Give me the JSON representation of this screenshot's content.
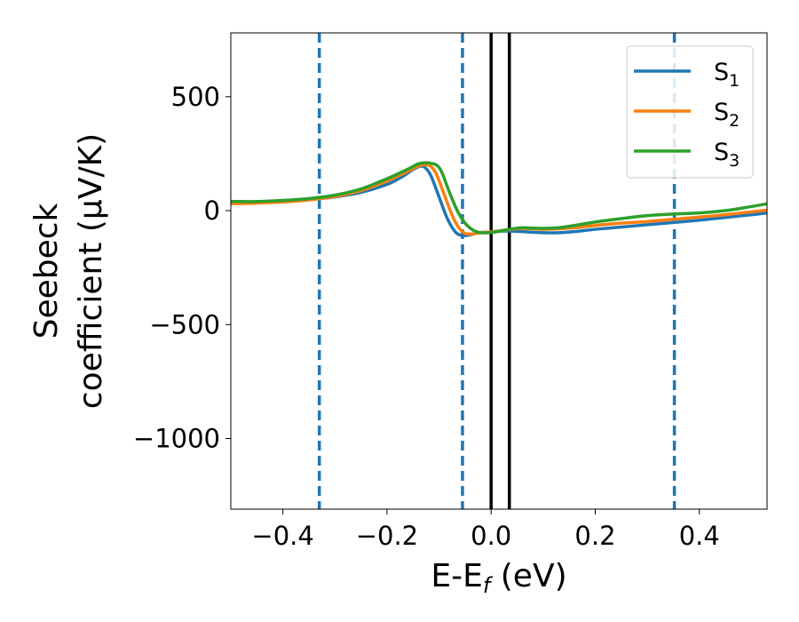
{
  "chart_data": {
    "type": "line",
    "title": "",
    "xlabel": "E-E_f (eV)",
    "ylabel_line1": "Seebeck",
    "ylabel_line2": "coefficient  (μV/K)",
    "xlim": [
      -0.5,
      0.53
    ],
    "ylim": [
      -1310,
      780
    ],
    "xticks": [
      -0.4,
      -0.2,
      0.0,
      0.2,
      0.4
    ],
    "xtick_labels": [
      "−0.4",
      "−0.2",
      "0.0",
      "0.2",
      "0.4"
    ],
    "yticks": [
      -1000,
      -500,
      0,
      500
    ],
    "ytick_labels": [
      "−1000",
      "−500",
      "0",
      "500"
    ],
    "grid": false,
    "legend": {
      "placement": "top-right"
    },
    "dashed_vlines": {
      "color": "#1f77b4",
      "x": [
        -0.33,
        -0.055,
        0.352
      ]
    },
    "solid_vlines": {
      "color": "#000000",
      "x": [
        0.0,
        0.035
      ]
    },
    "series": [
      {
        "name": "S",
        "subscript": "1",
        "color": "#1f77b4",
        "x": [
          -0.5,
          -0.45,
          -0.4,
          -0.35,
          -0.3,
          -0.25,
          -0.2,
          -0.17,
          -0.15,
          -0.135,
          -0.125,
          -0.115,
          -0.1,
          -0.085,
          -0.07,
          -0.058,
          -0.045,
          -0.03,
          -0.015,
          0.0,
          0.02,
          0.04,
          0.06,
          0.08,
          0.1,
          0.13,
          0.16,
          0.2,
          0.25,
          0.3,
          0.35,
          0.4,
          0.45,
          0.5,
          0.53
        ],
        "y": [
          35,
          35,
          40,
          48,
          60,
          80,
          115,
          150,
          180,
          195,
          185,
          150,
          60,
          -30,
          -90,
          -108,
          -108,
          -100,
          -95,
          -95,
          -90,
          -90,
          -92,
          -95,
          -97,
          -97,
          -92,
          -82,
          -72,
          -62,
          -52,
          -42,
          -30,
          -18,
          -10
        ]
      },
      {
        "name": "S",
        "subscript": "2",
        "color": "#ff7f0e",
        "x": [
          -0.5,
          -0.45,
          -0.4,
          -0.35,
          -0.3,
          -0.25,
          -0.2,
          -0.16,
          -0.14,
          -0.125,
          -0.115,
          -0.105,
          -0.09,
          -0.075,
          -0.062,
          -0.05,
          -0.035,
          -0.02,
          0.0,
          0.02,
          0.04,
          0.06,
          0.08,
          0.1,
          0.13,
          0.16,
          0.2,
          0.25,
          0.3,
          0.35,
          0.4,
          0.45,
          0.5,
          0.53
        ],
        "y": [
          30,
          33,
          38,
          47,
          62,
          88,
          130,
          172,
          195,
          202,
          192,
          160,
          70,
          -20,
          -75,
          -100,
          -102,
          -97,
          -93,
          -88,
          -82,
          -78,
          -80,
          -82,
          -80,
          -75,
          -65,
          -55,
          -48,
          -38,
          -28,
          -18,
          -5,
          2
        ]
      },
      {
        "name": "S",
        "subscript": "3",
        "color": "#2ca02c",
        "x": [
          -0.5,
          -0.45,
          -0.4,
          -0.35,
          -0.3,
          -0.25,
          -0.2,
          -0.16,
          -0.14,
          -0.125,
          -0.115,
          -0.105,
          -0.095,
          -0.08,
          -0.065,
          -0.05,
          -0.035,
          -0.02,
          0.0,
          0.02,
          0.04,
          0.06,
          0.08,
          0.1,
          0.13,
          0.16,
          0.2,
          0.25,
          0.3,
          0.35,
          0.4,
          0.45,
          0.5,
          0.53
        ],
        "y": [
          40,
          40,
          45,
          53,
          68,
          95,
          140,
          182,
          205,
          210,
          207,
          200,
          170,
          80,
          0,
          -55,
          -85,
          -97,
          -96,
          -88,
          -80,
          -75,
          -77,
          -78,
          -75,
          -65,
          -50,
          -35,
          -22,
          -15,
          -10,
          0,
          18,
          30
        ]
      }
    ]
  }
}
